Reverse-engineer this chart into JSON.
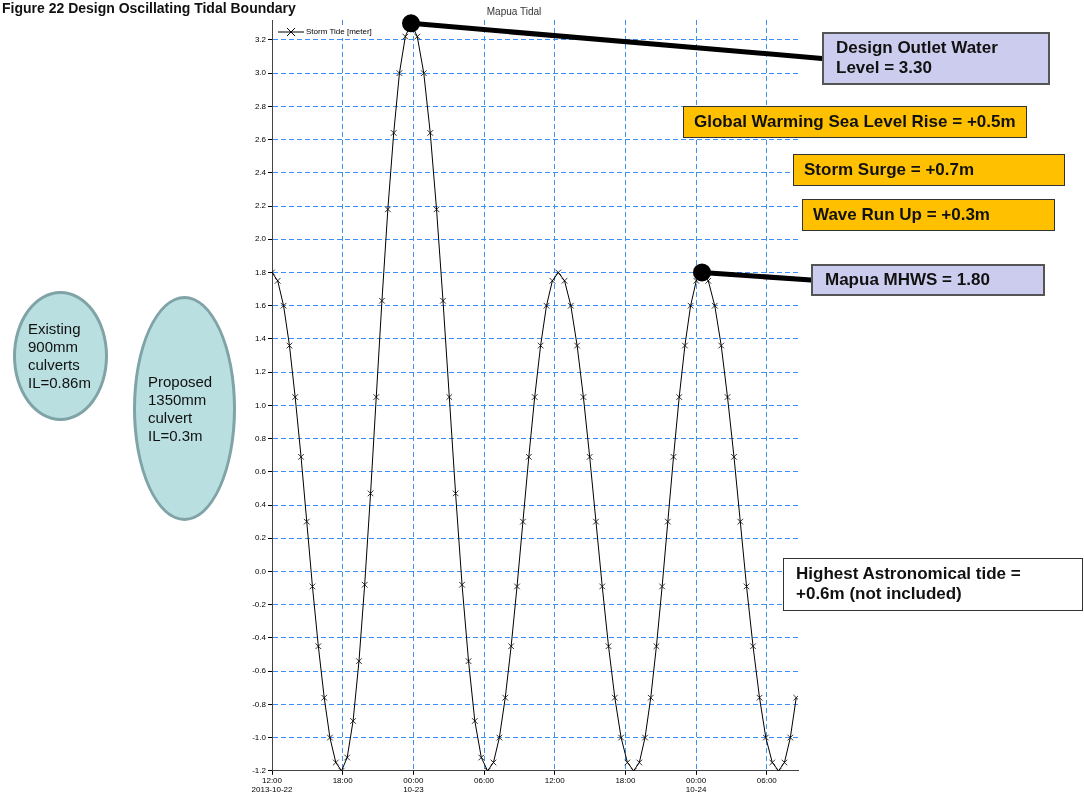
{
  "chart_data": {
    "type": "line",
    "title": "Mapua Tidal",
    "xlim": [
      "2013-10-22T12:00",
      "2013-10-24T08:39"
    ],
    "xticks": [
      {
        "value": "2013-10-22T12:00",
        "label": "12:00\n2013-10-22"
      },
      {
        "value": "2013-10-22T18:00",
        "label": "18:00"
      },
      {
        "value": "2013-10-23T00:00",
        "label": "00:00\n10-23"
      },
      {
        "value": "2013-10-23T06:00",
        "label": "06:00"
      },
      {
        "value": "2013-10-23T12:00",
        "label": "12:00"
      },
      {
        "value": "2013-10-23T18:00",
        "label": "18:00"
      },
      {
        "value": "2013-10-24T00:00",
        "label": "00:00\n10-24"
      },
      {
        "value": "2013-10-24T06:00",
        "label": "06:00"
      }
    ],
    "ylim": [
      -1.2,
      3.32
    ],
    "yticks": [
      {
        "value": -1.2,
        "label": "-1.2"
      },
      {
        "value": -1,
        "label": "-1.0"
      },
      -0.8,
      -0.6,
      -0.4,
      -0.2,
      {
        "value": 0,
        "label": "0.0"
      },
      0.2,
      0.4,
      0.6,
      0.8,
      {
        "value": 1,
        "label": "1.0"
      },
      1.2,
      1.4,
      1.6,
      1.8,
      {
        "value": 2,
        "label": "2.0"
      },
      2.2,
      2.4,
      2.6,
      2.8,
      {
        "value": 3,
        "label": "3.0"
      },
      3.2
    ],
    "grid": true,
    "legend": "top left",
    "marker": "cross",
    "line_style": "solid",
    "series": [
      {
        "name": "Storm Tide [meter]",
        "color": "#000000",
        "x": [
          "2013-10-22T12:00",
          "2013-10-22T12:29",
          "2013-10-22T12:59",
          "2013-10-22T13:29",
          "2013-10-22T13:58",
          "2013-10-22T14:28",
          "2013-10-22T14:57",
          "2013-10-22T15:26",
          "2013-10-22T15:56",
          "2013-10-22T16:26",
          "2013-10-22T16:55",
          "2013-10-22T17:25",
          "2013-10-22T17:54",
          "2013-10-22T18:23",
          "2013-10-22T18:53",
          "2013-10-22T19:23",
          "2013-10-22T19:52",
          "2013-10-22T20:22",
          "2013-10-22T20:51",
          "2013-10-22T21:20",
          "2013-10-22T21:50",
          "2013-10-22T22:20",
          "2013-10-22T22:49",
          "2013-10-22T23:19",
          "2013-10-22T23:48",
          "2013-10-23T00:20",
          "2013-10-23T00:53",
          "2013-10-23T01:26",
          "2013-10-23T01:58",
          "2013-10-23T02:31",
          "2013-10-23T03:03",
          "2013-10-23T03:35",
          "2013-10-23T04:08",
          "2013-10-23T04:41",
          "2013-10-23T05:13",
          "2013-10-23T05:46",
          "2013-10-23T06:18",
          "2013-10-23T06:48",
          "2013-10-23T07:18",
          "2013-10-23T07:48",
          "2013-10-23T08:18",
          "2013-10-23T08:48",
          "2013-10-23T09:18",
          "2013-10-23T09:48",
          "2013-10-23T10:18",
          "2013-10-23T10:48",
          "2013-10-23T11:18",
          "2013-10-23T11:48",
          "2013-10-23T12:18",
          "2013-10-23T12:50",
          "2013-10-23T13:22",
          "2013-10-23T13:54",
          "2013-10-23T14:26",
          "2013-10-23T14:58",
          "2013-10-23T15:30",
          "2013-10-23T16:02",
          "2013-10-23T16:34",
          "2013-10-23T17:06",
          "2013-10-23T17:38",
          "2013-10-23T18:10",
          "2013-10-23T18:42",
          "2013-10-23T19:11",
          "2013-10-23T19:40",
          "2013-10-23T20:09",
          "2013-10-23T20:38",
          "2013-10-23T21:07",
          "2013-10-23T21:36",
          "2013-10-23T22:05",
          "2013-10-23T22:34",
          "2013-10-23T23:03",
          "2013-10-23T23:32",
          "2013-10-24T00:01",
          "2013-10-24T00:30",
          "2013-10-24T01:02",
          "2013-10-24T01:35",
          "2013-10-24T02:08",
          "2013-10-24T02:40",
          "2013-10-24T03:13",
          "2013-10-24T03:45",
          "2013-10-24T04:17",
          "2013-10-24T04:50",
          "2013-10-24T05:23",
          "2013-10-24T05:55",
          "2013-10-24T06:28",
          "2013-10-24T07:00",
          "2013-10-24T07:30",
          "2013-10-24T08:00",
          "2013-10-24T08:30"
        ],
        "values": [
          1.8,
          1.75,
          1.6,
          1.36,
          1.05,
          0.69,
          0.3,
          -0.09,
          -0.45,
          -0.76,
          -1.0,
          -1.15,
          -1.2,
          -1.12,
          -0.9,
          -0.54,
          -0.08,
          0.47,
          1.05,
          1.63,
          2.18,
          2.64,
          3.0,
          3.22,
          3.3,
          3.22,
          3.0,
          2.64,
          2.18,
          1.63,
          1.05,
          0.47,
          -0.08,
          -0.54,
          -0.9,
          -1.12,
          -1.2,
          -1.15,
          -1.0,
          -0.76,
          -0.45,
          -0.09,
          0.3,
          0.69,
          1.05,
          1.36,
          1.6,
          1.75,
          1.8,
          1.75,
          1.6,
          1.36,
          1.05,
          0.69,
          0.3,
          -0.09,
          -0.45,
          -0.76,
          -1.0,
          -1.15,
          -1.2,
          -1.15,
          -1.0,
          -0.76,
          -0.45,
          -0.09,
          0.3,
          0.69,
          1.05,
          1.36,
          1.6,
          1.75,
          1.8,
          1.75,
          1.6,
          1.36,
          1.05,
          0.69,
          0.3,
          -0.09,
          -0.45,
          -0.76,
          -1.0,
          -1.15,
          -1.2,
          -1.15,
          -1.0,
          -0.76
        ]
      }
    ],
    "annotations": [
      "Figure 22 Design Oscillating Tidal Boundary",
      {
        "text": "Design Outlet Water Level = 3.30",
        "x": "2013-10-22T23:48",
        "y": 3.3
      },
      "Global Warming  Sea Level Rise = +0.5m",
      "Storm Surge = +0.7m",
      "Wave Run Up = +0.3m",
      {
        "text": "Mapua MHWS = 1.80",
        "x": "2013-10-24T00:30",
        "y": 1.8
      },
      "Highest Astronomical tide = +0.6m (not included)",
      "Existing 900mm culverts IL=0.86m",
      "Proposed 1350mm culvert IL=0.3m"
    ]
  }
}
